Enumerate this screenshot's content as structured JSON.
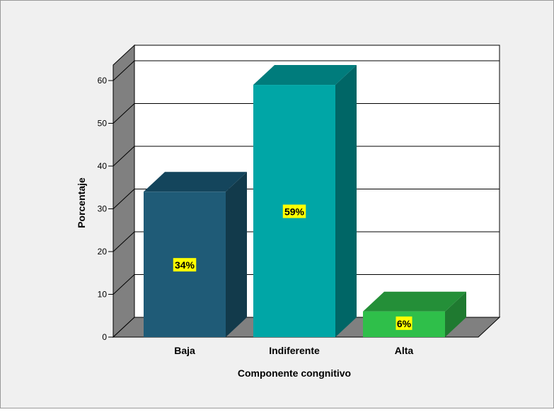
{
  "chart_data": {
    "type": "bar",
    "three_d": true,
    "categories": [
      "Baja",
      "Indiferente",
      "Alta"
    ],
    "values": [
      34,
      59,
      6
    ],
    "data_labels": [
      "34%",
      "59%",
      "6%"
    ],
    "xlabel": "Componente congnitivo",
    "ylabel": "Porcentaje",
    "ylim": [
      0,
      60
    ],
    "yticks": [
      "0",
      "10",
      "20",
      "30",
      "40",
      "50",
      "60"
    ],
    "grid": true,
    "colors": {
      "bars": [
        "#1f5b77",
        "#00a6a6",
        "#2fbf4a"
      ],
      "bar_tops": [
        "#14455c",
        "#007c7c",
        "#248f38"
      ],
      "bar_sides": [
        "#123a4b",
        "#006666",
        "#1f7a30"
      ],
      "label_bg": "#ffff00",
      "background": "#f0f0f0",
      "plot_background": "#ffffff",
      "floor_and_wall": "#808080",
      "frame_border": "#999999"
    }
  }
}
